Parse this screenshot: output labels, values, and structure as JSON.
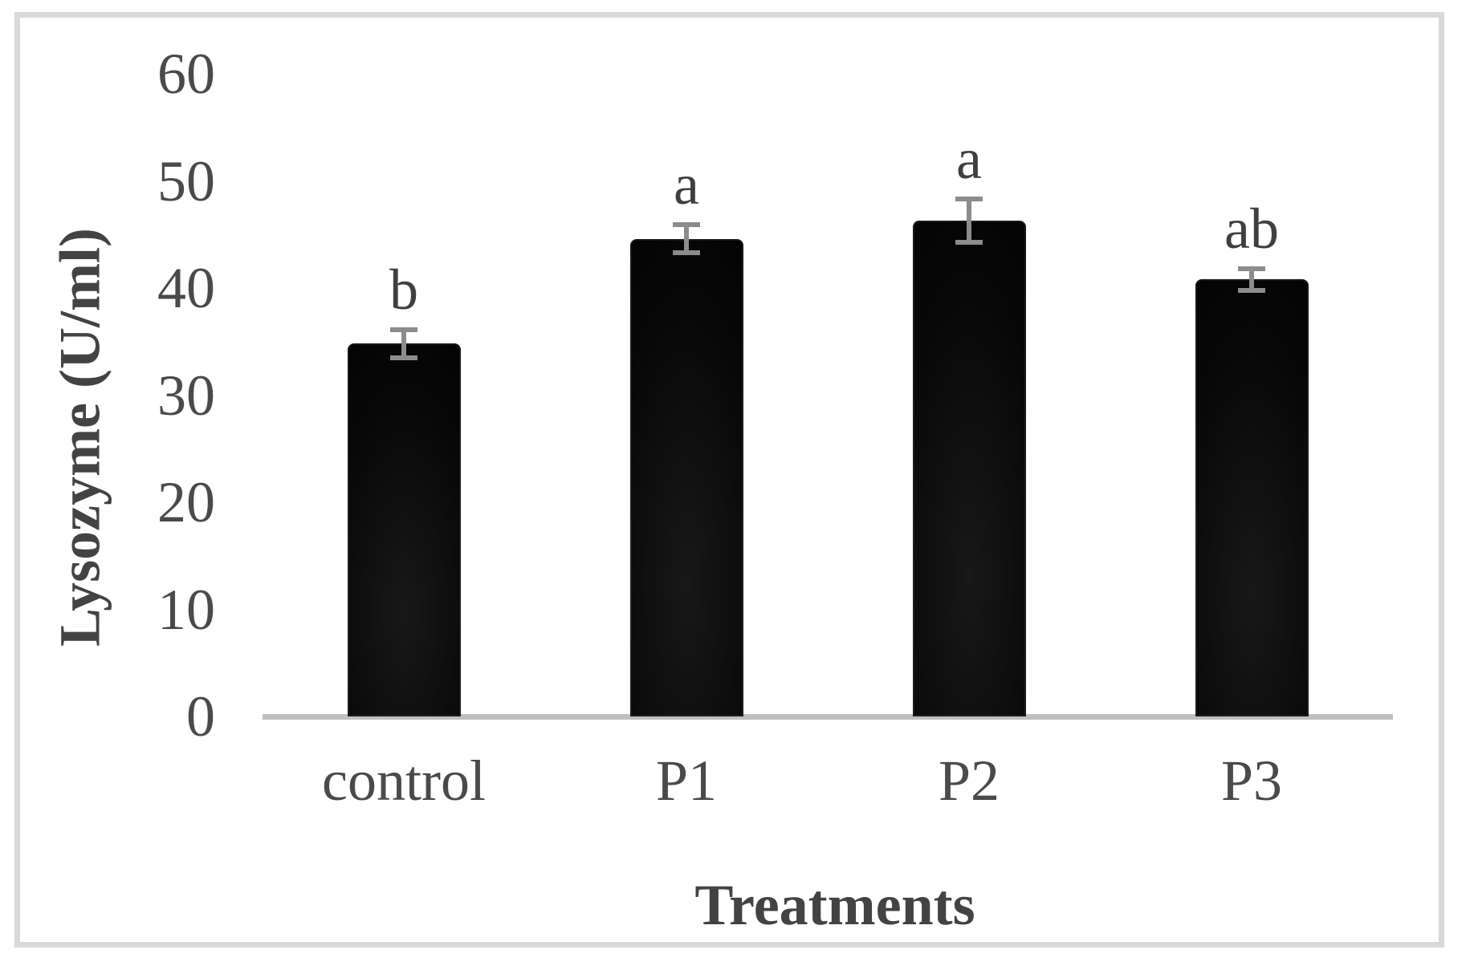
{
  "chart_data": {
    "type": "bar",
    "title": "",
    "categories": [
      "control",
      "P1",
      "P2",
      "P3"
    ],
    "values": [
      34.8,
      44.6,
      46.3,
      40.8
    ],
    "errors": [
      1.3,
      1.3,
      2.0,
      1.0
    ],
    "sig_letters": [
      "b",
      "a",
      "a",
      "ab"
    ],
    "ylabel": "Lysozyme (U/ml)",
    "xlabel": "Treatments",
    "yticks": [
      0,
      10,
      20,
      30,
      40,
      50,
      60
    ],
    "ylim": [
      0,
      60
    ],
    "grid": "off",
    "legend": "none",
    "bar_color": "#000000",
    "error_bar_color": "#8c8c8c",
    "axis_line_color": "#bfbfbf",
    "frame_border_color": "#d9d9d9",
    "text_color": "#4a4a4a"
  }
}
